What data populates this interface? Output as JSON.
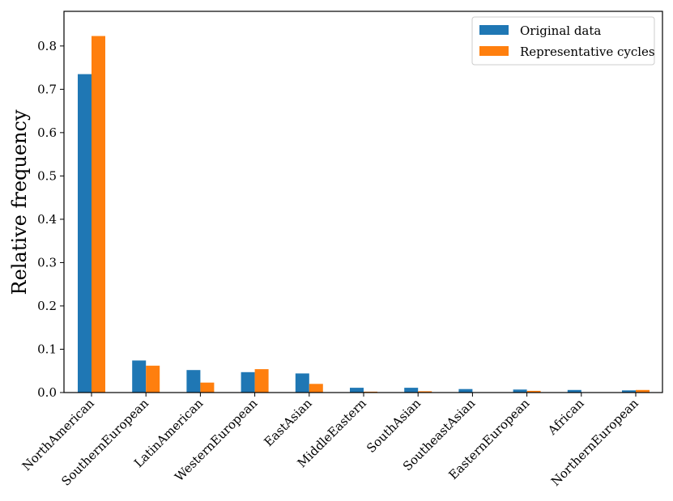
{
  "chart_data": {
    "type": "bar",
    "title": "",
    "xlabel": "",
    "ylabel": "Relative frequency",
    "ylim": [
      0,
      0.88
    ],
    "yticks": [
      "0.0",
      "0.1",
      "0.2",
      "0.3",
      "0.4",
      "0.5",
      "0.6",
      "0.7",
      "0.8"
    ],
    "grid": false,
    "legend_position": "top-right",
    "categories": [
      "NorthAmerican",
      "SouthernEuropean",
      "LatinAmerican",
      "WesternEuropean",
      "EastAsian",
      "MiddleEastern",
      "SouthAsian",
      "SoutheastAsian",
      "EasternEuropean",
      "African",
      "NorthernEuropean"
    ],
    "series": [
      {
        "name": "Original data",
        "color": "#1f77b4",
        "values": [
          0.735,
          0.074,
          0.052,
          0.047,
          0.044,
          0.011,
          0.011,
          0.008,
          0.007,
          0.006,
          0.005
        ]
      },
      {
        "name": "Representative cycles",
        "color": "#ff7f0e",
        "values": [
          0.823,
          0.062,
          0.023,
          0.054,
          0.02,
          0.002,
          0.003,
          0.0,
          0.004,
          0.0,
          0.006
        ]
      }
    ]
  }
}
